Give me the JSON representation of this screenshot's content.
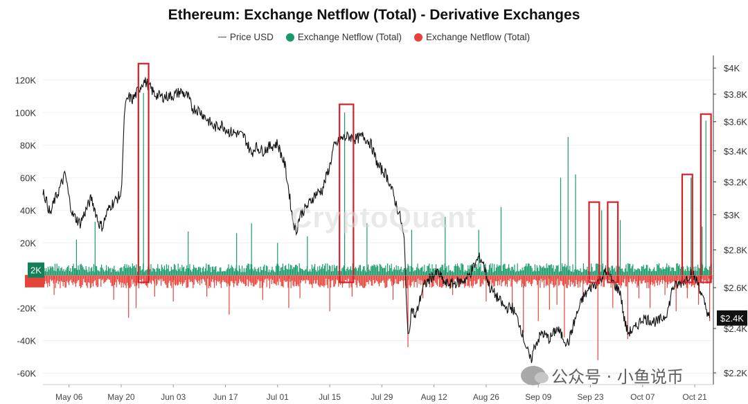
{
  "chart_data": {
    "type": "bar",
    "title": "Ethereum: Exchange Netflow (Total) - Derivative Exchanges",
    "legend": {
      "placement": "top-center",
      "items": [
        {
          "label": "Price USD",
          "style": "line",
          "color": "#555555"
        },
        {
          "label": "Exchange Netflow (Total)",
          "style": "dot",
          "color": "#1a9a6a"
        },
        {
          "label": "Exchange Netflow (Total)",
          "style": "dot",
          "color": "#e8433a"
        }
      ]
    },
    "x_axis": {
      "type": "date",
      "start": "2024-04-29",
      "end": "2024-10-26",
      "ticks": [
        {
          "date": "2024-05-06",
          "label": "May 06"
        },
        {
          "date": "2024-05-20",
          "label": "May 20"
        },
        {
          "date": "2024-06-03",
          "label": "Jun 03"
        },
        {
          "date": "2024-06-17",
          "label": "Jun 17"
        },
        {
          "date": "2024-07-01",
          "label": "Jul 01"
        },
        {
          "date": "2024-07-15",
          "label": "Jul 15"
        },
        {
          "date": "2024-07-29",
          "label": "Jul 29"
        },
        {
          "date": "2024-08-12",
          "label": "Aug 12"
        },
        {
          "date": "2024-08-26",
          "label": "Aug 26"
        },
        {
          "date": "2024-09-09",
          "label": "Sep 09"
        },
        {
          "date": "2024-09-23",
          "label": "Sep 23"
        },
        {
          "date": "2024-10-07",
          "label": "Oct 07"
        },
        {
          "date": "2024-10-21",
          "label": "Oct 21"
        }
      ]
    },
    "y_left": {
      "label": "",
      "ylim": [
        -67000,
        135000
      ],
      "ticks": [
        {
          "value": 120000,
          "label": "120K"
        },
        {
          "value": 100000,
          "label": "100K"
        },
        {
          "value": 80000,
          "label": "80K"
        },
        {
          "value": 60000,
          "label": "60K"
        },
        {
          "value": 40000,
          "label": "40K"
        },
        {
          "value": 20000,
          "label": "20K"
        },
        {
          "value": -20000,
          "label": "-20K"
        },
        {
          "value": -40000,
          "label": "-40K"
        },
        {
          "value": -60000,
          "label": "-60K"
        }
      ],
      "current_marker": {
        "value": 2000,
        "label": "2K"
      }
    },
    "y_right": {
      "label": "",
      "scale": "log",
      "ylim": [
        2150,
        4100
      ],
      "ticks": [
        {
          "value": 4000,
          "label": "$4K"
        },
        {
          "value": 3800,
          "label": "$3.8K"
        },
        {
          "value": 3600,
          "label": "$3.6K"
        },
        {
          "value": 3400,
          "label": "$3.4K"
        },
        {
          "value": 3200,
          "label": "$3.2K"
        },
        {
          "value": 3000,
          "label": "$3K"
        },
        {
          "value": 2800,
          "label": "$2.8K"
        },
        {
          "value": 2600,
          "label": "$2.6K"
        },
        {
          "value": 2400,
          "label": "$2.4K"
        },
        {
          "value": 2200,
          "label": "$2.2K"
        }
      ],
      "current_marker": {
        "value": 2450,
        "label": "$2.4K"
      }
    },
    "price_usd": [
      [
        "2024-04-29",
        3150
      ],
      [
        "2024-05-01",
        3000
      ],
      [
        "2024-05-02",
        3080
      ],
      [
        "2024-05-03",
        3130
      ],
      [
        "2024-05-05",
        3250
      ],
      [
        "2024-05-06",
        3100
      ],
      [
        "2024-05-07",
        3000
      ],
      [
        "2024-05-09",
        2950
      ],
      [
        "2024-05-11",
        3050
      ],
      [
        "2024-05-12",
        3100
      ],
      [
        "2024-05-14",
        2950
      ],
      [
        "2024-05-15",
        2930
      ],
      [
        "2024-05-16",
        3000
      ],
      [
        "2024-05-17",
        3050
      ],
      [
        "2024-05-19",
        3100
      ],
      [
        "2024-05-20",
        3120
      ],
      [
        "2024-05-21",
        3700
      ],
      [
        "2024-05-22",
        3780
      ],
      [
        "2024-05-23",
        3760
      ],
      [
        "2024-05-24",
        3800
      ],
      [
        "2024-05-26",
        3900
      ],
      [
        "2024-05-27",
        3880
      ],
      [
        "2024-05-29",
        3800
      ],
      [
        "2024-05-31",
        3780
      ],
      [
        "2024-06-03",
        3790
      ],
      [
        "2024-06-05",
        3820
      ],
      [
        "2024-06-07",
        3780
      ],
      [
        "2024-06-08",
        3700
      ],
      [
        "2024-06-10",
        3680
      ],
      [
        "2024-06-12",
        3620
      ],
      [
        "2024-06-14",
        3560
      ],
      [
        "2024-06-16",
        3580
      ],
      [
        "2024-06-18",
        3530
      ],
      [
        "2024-06-20",
        3520
      ],
      [
        "2024-06-22",
        3500
      ],
      [
        "2024-06-24",
        3380
      ],
      [
        "2024-06-25",
        3430
      ],
      [
        "2024-06-27",
        3400
      ],
      [
        "2024-06-29",
        3430
      ],
      [
        "2024-07-01",
        3450
      ],
      [
        "2024-07-03",
        3300
      ],
      [
        "2024-07-04",
        3150
      ],
      [
        "2024-07-05",
        2980
      ],
      [
        "2024-07-06",
        2900
      ],
      [
        "2024-07-07",
        3000
      ],
      [
        "2024-07-09",
        3050
      ],
      [
        "2024-07-11",
        3120
      ],
      [
        "2024-07-13",
        3150
      ],
      [
        "2024-07-15",
        3300
      ],
      [
        "2024-07-16",
        3420
      ],
      [
        "2024-07-18",
        3480
      ],
      [
        "2024-07-20",
        3500
      ],
      [
        "2024-07-22",
        3480
      ],
      [
        "2024-07-24",
        3500
      ],
      [
        "2024-07-26",
        3450
      ],
      [
        "2024-07-28",
        3300
      ],
      [
        "2024-07-30",
        3250
      ],
      [
        "2024-07-31",
        3200
      ],
      [
        "2024-08-02",
        3050
      ],
      [
        "2024-08-03",
        2980
      ],
      [
        "2024-08-04",
        2850
      ],
      [
        "2024-08-05",
        2350
      ],
      [
        "2024-08-06",
        2500
      ],
      [
        "2024-08-07",
        2450
      ],
      [
        "2024-08-09",
        2600
      ],
      [
        "2024-08-11",
        2650
      ],
      [
        "2024-08-13",
        2680
      ],
      [
        "2024-08-15",
        2620
      ],
      [
        "2024-08-17",
        2620
      ],
      [
        "2024-08-19",
        2630
      ],
      [
        "2024-08-21",
        2650
      ],
      [
        "2024-08-23",
        2720
      ],
      [
        "2024-08-24",
        2760
      ],
      [
        "2024-08-25",
        2740
      ],
      [
        "2024-08-27",
        2600
      ],
      [
        "2024-08-29",
        2550
      ],
      [
        "2024-08-31",
        2500
      ],
      [
        "2024-09-02",
        2500
      ],
      [
        "2024-09-04",
        2420
      ],
      [
        "2024-09-06",
        2300
      ],
      [
        "2024-09-07",
        2250
      ],
      [
        "2024-09-08",
        2320
      ],
      [
        "2024-09-10",
        2380
      ],
      [
        "2024-09-12",
        2350
      ],
      [
        "2024-09-14",
        2400
      ],
      [
        "2024-09-16",
        2350
      ],
      [
        "2024-09-17",
        2330
      ],
      [
        "2024-09-19",
        2450
      ],
      [
        "2024-09-21",
        2550
      ],
      [
        "2024-09-23",
        2600
      ],
      [
        "2024-09-25",
        2630
      ],
      [
        "2024-09-27",
        2680
      ],
      [
        "2024-09-28",
        2660
      ],
      [
        "2024-09-30",
        2600
      ],
      [
        "2024-10-01",
        2580
      ],
      [
        "2024-10-02",
        2450
      ],
      [
        "2024-10-03",
        2380
      ],
      [
        "2024-10-05",
        2400
      ],
      [
        "2024-10-07",
        2450
      ],
      [
        "2024-10-09",
        2440
      ],
      [
        "2024-10-11",
        2430
      ],
      [
        "2024-10-13",
        2460
      ],
      [
        "2024-10-14",
        2500
      ],
      [
        "2024-10-15",
        2600
      ],
      [
        "2024-10-17",
        2620
      ],
      [
        "2024-10-19",
        2650
      ],
      [
        "2024-10-20",
        2680
      ],
      [
        "2024-10-21",
        2650
      ],
      [
        "2024-10-22",
        2620
      ],
      [
        "2024-10-23",
        2550
      ],
      [
        "2024-10-24",
        2500
      ],
      [
        "2024-10-25",
        2450
      ]
    ],
    "netflow_spikes": [
      [
        "2024-05-02",
        -12000
      ],
      [
        "2024-05-08",
        22000
      ],
      [
        "2024-05-13",
        33000
      ],
      [
        "2024-05-18",
        -15000
      ],
      [
        "2024-05-22",
        -26000
      ],
      [
        "2024-05-24",
        -20000
      ],
      [
        "2024-05-26",
        112000
      ],
      [
        "2024-05-29",
        -13000
      ],
      [
        "2024-06-03",
        -16000
      ],
      [
        "2024-06-07",
        27000
      ],
      [
        "2024-06-12",
        -13000
      ],
      [
        "2024-06-18",
        -24000
      ],
      [
        "2024-06-20",
        26000
      ],
      [
        "2024-06-24",
        32000
      ],
      [
        "2024-06-27",
        -15000
      ],
      [
        "2024-07-01",
        20000
      ],
      [
        "2024-07-04",
        -20000
      ],
      [
        "2024-07-07",
        -14000
      ],
      [
        "2024-07-09",
        24000
      ],
      [
        "2024-07-15",
        -22000
      ],
      [
        "2024-07-19",
        100000
      ],
      [
        "2024-07-21",
        -13000
      ],
      [
        "2024-07-25",
        32000
      ],
      [
        "2024-08-01",
        -15000
      ],
      [
        "2024-08-05",
        -44000
      ],
      [
        "2024-08-06",
        28000
      ],
      [
        "2024-08-09",
        -14000
      ],
      [
        "2024-08-15",
        36000
      ],
      [
        "2024-08-17",
        -12000
      ],
      [
        "2024-08-24",
        28000
      ],
      [
        "2024-08-26",
        -16000
      ],
      [
        "2024-08-30",
        42000
      ],
      [
        "2024-09-02",
        -22000
      ],
      [
        "2024-09-05",
        -35000
      ],
      [
        "2024-09-09",
        -28000
      ],
      [
        "2024-09-12",
        -21000
      ],
      [
        "2024-09-14",
        -18000
      ],
      [
        "2024-09-15",
        60000
      ],
      [
        "2024-09-16",
        -38000
      ],
      [
        "2024-09-17",
        85000
      ],
      [
        "2024-09-19",
        62000
      ],
      [
        "2024-09-21",
        -15000
      ],
      [
        "2024-09-25",
        -52000
      ],
      [
        "2024-09-26",
        40000
      ],
      [
        "2024-09-29",
        -20000
      ],
      [
        "2024-10-01",
        34000
      ],
      [
        "2024-10-03",
        -39000
      ],
      [
        "2024-10-06",
        -14000
      ],
      [
        "2024-10-09",
        -20000
      ],
      [
        "2024-10-13",
        -12000
      ],
      [
        "2024-10-16",
        -22000
      ],
      [
        "2024-10-19",
        -14000
      ],
      [
        "2024-10-20",
        60000
      ],
      [
        "2024-10-22",
        -18000
      ],
      [
        "2024-10-23",
        30000
      ],
      [
        "2024-10-24",
        95000
      ],
      [
        "2024-10-25",
        -28000
      ]
    ],
    "highlighted_periods": [
      [
        "2024-05-25",
        "2024-05-27"
      ],
      [
        "2024-07-18",
        "2024-07-21"
      ],
      [
        "2024-09-23",
        "2024-09-25"
      ],
      [
        "2024-09-28",
        "2024-09-30"
      ],
      [
        "2024-10-18",
        "2024-10-20"
      ],
      [
        "2024-10-23",
        "2024-10-25"
      ]
    ],
    "highlight_tops": [
      130000,
      105000,
      45000,
      45000,
      62000,
      99000
    ],
    "grid": "horizontal-faint",
    "colors": {
      "inflow": "#1a9a6a",
      "outflow": "#e8433a",
      "price": "#111111",
      "highlight": "#d42028"
    }
  },
  "watermark": {
    "text": "公众号 · 小鱼说币",
    "icon": "wechat-icon"
  }
}
